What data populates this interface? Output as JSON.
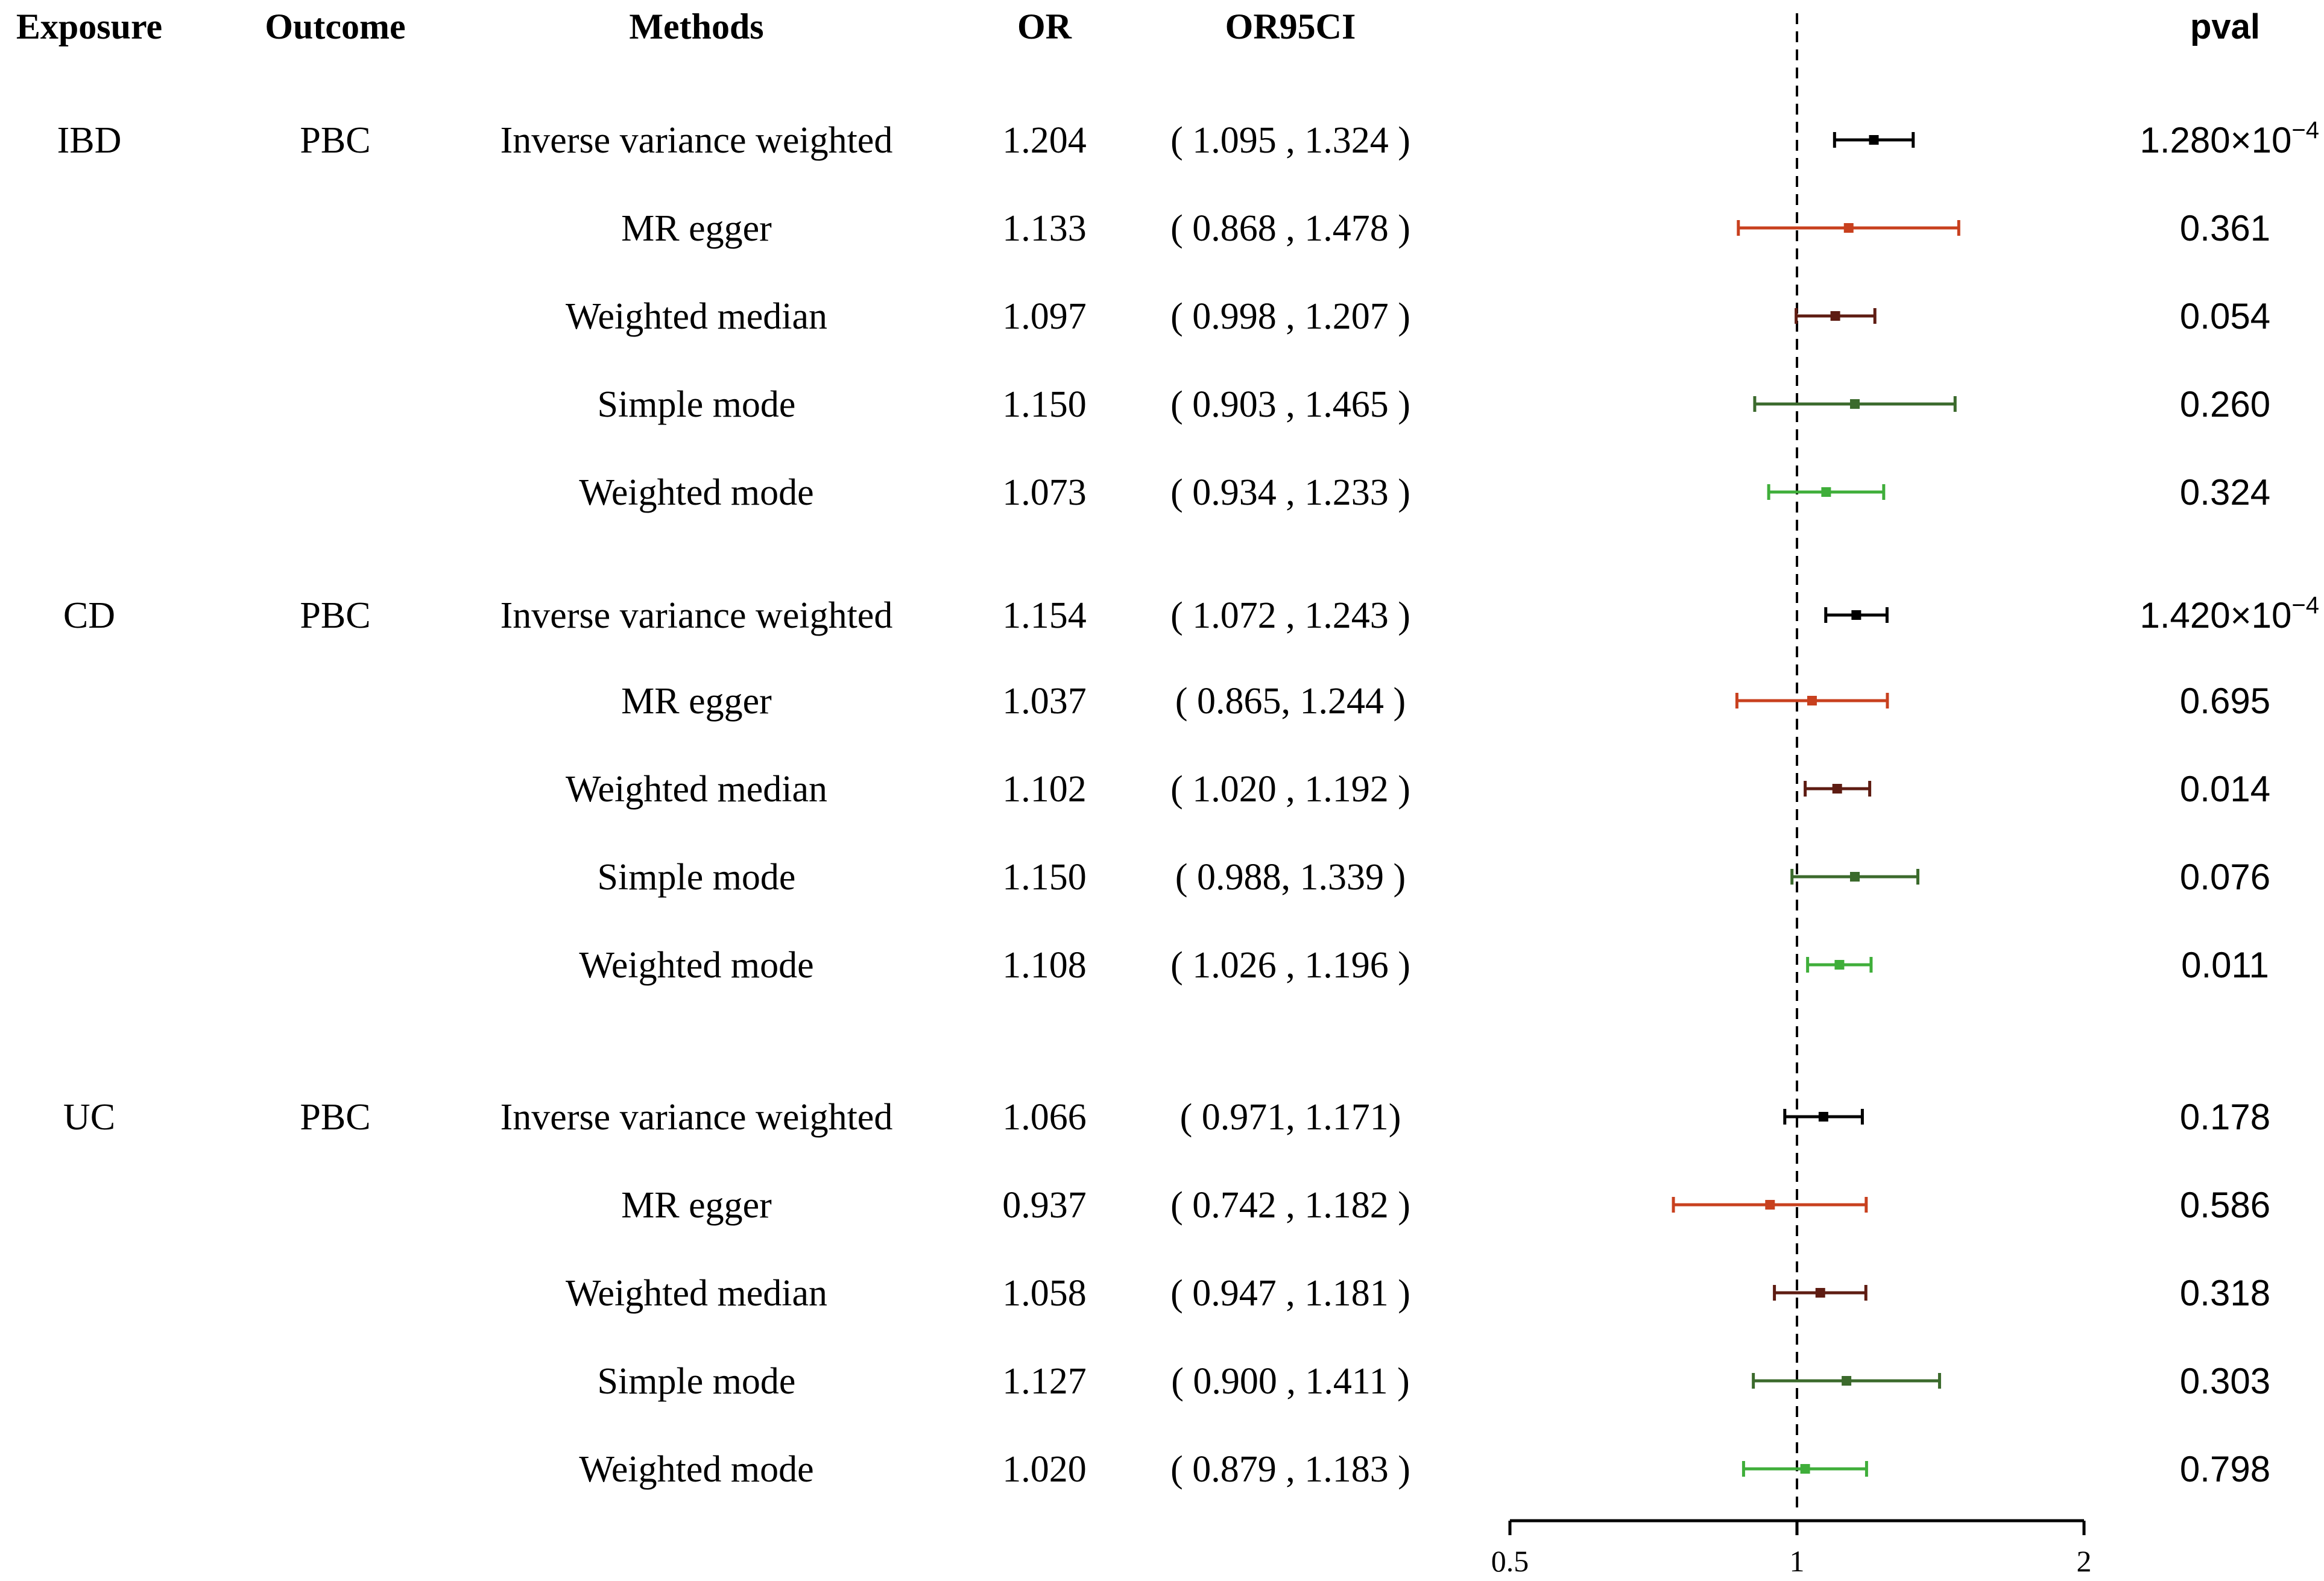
{
  "headers": {
    "exposure": "Exposure",
    "outcome": "Outcome",
    "methods": "Methods",
    "or": "OR",
    "or95ci": "OR95CI",
    "pval": "pval"
  },
  "series_colors": {
    "Inverse variance weighted": "#000000",
    "MR egger": "#c8401e",
    "Weighted median": "#5e1c12",
    "Simple mode": "#3b6a2c",
    "Weighted mode": "#3fae3a"
  },
  "chart_data": {
    "type": "forest",
    "xlabel": "",
    "xscale": "log",
    "xlim": [
      0.5,
      2
    ],
    "xticks": [
      0.5,
      1,
      2
    ],
    "xtick_labels": [
      "0.5",
      "1",
      "2"
    ],
    "reference_line": 1,
    "groups": [
      {
        "exposure": "IBD",
        "outcome": "PBC",
        "rows": [
          {
            "method": "Inverse variance weighted",
            "or": 1.204,
            "lo": 1.095,
            "hi": 1.324,
            "or_text": "1.204",
            "ci_text": "( 1.095 , 1.324 )",
            "pval_mantissa": "1.280×10",
            "pval_exp": "−4"
          },
          {
            "method": "MR egger",
            "or": 1.133,
            "lo": 0.868,
            "hi": 1.478,
            "or_text": "1.133",
            "ci_text": "( 0.868 , 1.478 )",
            "pval_text": "0.361"
          },
          {
            "method": "Weighted median",
            "or": 1.097,
            "lo": 0.998,
            "hi": 1.207,
            "or_text": "1.097",
            "ci_text": "( 0.998 , 1.207 )",
            "pval_text": "0.054"
          },
          {
            "method": "Simple mode",
            "or": 1.15,
            "lo": 0.903,
            "hi": 1.465,
            "or_text": "1.150",
            "ci_text": "( 0.903 , 1.465 )",
            "pval_text": "0.260"
          },
          {
            "method": "Weighted mode",
            "or": 1.073,
            "lo": 0.934,
            "hi": 1.233,
            "or_text": "1.073",
            "ci_text": "( 0.934 , 1.233 )",
            "pval_text": "0.324"
          }
        ]
      },
      {
        "exposure": "CD",
        "outcome": "PBC",
        "rows": [
          {
            "method": "Inverse variance weighted",
            "or": 1.154,
            "lo": 1.072,
            "hi": 1.243,
            "or_text": "1.154",
            "ci_text": "( 1.072 , 1.243 )",
            "pval_mantissa": "1.420×10",
            "pval_exp": "−4"
          },
          {
            "method": "MR egger",
            "or": 1.037,
            "lo": 0.865,
            "hi": 1.244,
            "or_text": "1.037",
            "ci_text": "( 0.865, 1.244 )",
            "pval_text": "0.695"
          },
          {
            "method": "Weighted median",
            "or": 1.102,
            "lo": 1.02,
            "hi": 1.192,
            "or_text": "1.102",
            "ci_text": "( 1.020 , 1.192 )",
            "pval_text": "0.014"
          },
          {
            "method": "Simple mode",
            "or": 1.15,
            "lo": 0.988,
            "hi": 1.339,
            "or_text": "1.150",
            "ci_text": "( 0.988, 1.339 )",
            "pval_text": "0.076"
          },
          {
            "method": "Weighted mode",
            "or": 1.108,
            "lo": 1.026,
            "hi": 1.196,
            "or_text": "1.108",
            "ci_text": "( 1.026 , 1.196 )",
            "pval_text": "0.011"
          }
        ]
      },
      {
        "exposure": "UC",
        "outcome": "PBC",
        "rows": [
          {
            "method": "Inverse variance weighted",
            "or": 1.066,
            "lo": 0.971,
            "hi": 1.171,
            "or_text": "1.066",
            "ci_text": "( 0.971, 1.171)",
            "pval_text": "0.178"
          },
          {
            "method": "MR egger",
            "or": 0.937,
            "lo": 0.742,
            "hi": 1.182,
            "or_text": "0.937",
            "ci_text": "( 0.742 , 1.182 )",
            "pval_text": "0.586"
          },
          {
            "method": "Weighted median",
            "or": 1.058,
            "lo": 0.947,
            "hi": 1.181,
            "or_text": "1.058",
            "ci_text": "( 0.947 , 1.181 )",
            "pval_text": "0.318"
          },
          {
            "method": "Simple mode",
            "or": 1.127,
            "lo": 0.9,
            "hi": 1.411,
            "or_text": "1.127",
            "ci_text": "( 0.900 , 1.411 )",
            "pval_text": "0.303"
          },
          {
            "method": "Weighted mode",
            "or": 1.02,
            "lo": 0.879,
            "hi": 1.183,
            "or_text": "1.020",
            "ci_text": "( 0.879 , 1.183 )",
            "pval_text": "0.798"
          }
        ]
      }
    ]
  }
}
